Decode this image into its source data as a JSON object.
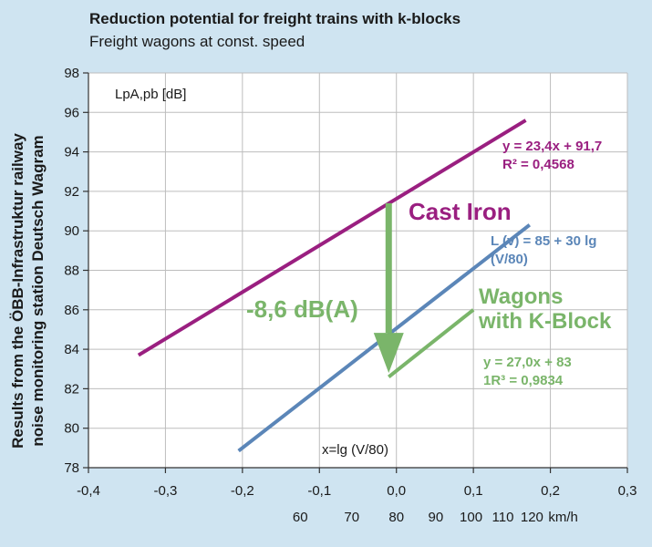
{
  "chart_data": {
    "type": "line",
    "title": "Reduction potential for freight trains with k-blocks",
    "subtitle": "Freight wagons at const. speed",
    "ylabel_lines": [
      "Results from the ÖBB-Infrastruktur railway",
      "noise monitoring station Deutsch Wagram"
    ],
    "y_unit_label": "LpA,pb [dB]",
    "x_unit_label": "x=lg (V/80)",
    "xlim": [
      -0.4,
      0.3
    ],
    "ylim": [
      78,
      98
    ],
    "x_ticks": [
      -0.4,
      -0.3,
      -0.2,
      -0.1,
      0.0,
      0.1,
      0.2,
      0.3
    ],
    "x_tick_labels": [
      "-0,4",
      "-0,3",
      "-0,2",
      "-0,1",
      "0,0",
      "0,1",
      "0,2",
      "0,3"
    ],
    "y_ticks": [
      78,
      80,
      82,
      84,
      86,
      88,
      90,
      92,
      94,
      96,
      98
    ],
    "y_tick_labels": [
      "78",
      "80",
      "82",
      "84",
      "86",
      "88",
      "90",
      "92",
      "94",
      "96",
      "98"
    ],
    "grid": true,
    "speed_axis": {
      "unit": "km/h",
      "ticks": [
        {
          "label": "60",
          "speed": 60
        },
        {
          "label": "70",
          "speed": 70
        },
        {
          "label": "80",
          "speed": 80
        },
        {
          "label": "90",
          "speed": 90
        },
        {
          "label": "100",
          "speed": 100
        },
        {
          "label": "110",
          "speed": 110
        },
        {
          "label": "120",
          "speed": 120
        }
      ]
    },
    "series": [
      {
        "key": "cast",
        "color": "#9a1f80",
        "x": [
          -0.335,
          0.168
        ],
        "y": [
          83.7,
          95.6
        ]
      },
      {
        "key": "model",
        "color": "#5b86b8",
        "x": [
          -0.205,
          0.173
        ],
        "y": [
          78.85,
          90.3
        ]
      },
      {
        "key": "kblock",
        "color": "#7ab56a",
        "x": [
          -0.01,
          0.1
        ],
        "y": [
          82.6,
          86.0
        ]
      }
    ],
    "arrow": {
      "x": -0.01,
      "y_from": 91.4,
      "y_to": 82.8,
      "color": "#7ab56a"
    },
    "annotations": [
      {
        "key": "cast_eq",
        "lines": [
          "y = 23,4x + 91,7",
          "R² = 0,4568"
        ],
        "color": "#9a1f80"
      },
      {
        "key": "cast_name",
        "lines": [
          "Cast Iron"
        ],
        "color": "#9a1f80"
      },
      {
        "key": "model_eq",
        "lines": [
          "L (v) = 85 + 30 lg",
          "(V/80)"
        ],
        "color": "#5b86b8"
      },
      {
        "key": "kblock_name",
        "lines": [
          "Wagons",
          "with K-Block"
        ],
        "color": "#7ab56a"
      },
      {
        "key": "kblock_eq",
        "lines": [
          "y = 27,0x + 83",
          "1R³ = 0,9834"
        ],
        "color": "#7ab56a"
      },
      {
        "key": "reduction",
        "lines": [
          "-8,6 dB(A)"
        ],
        "color": "#7ab56a"
      }
    ]
  }
}
